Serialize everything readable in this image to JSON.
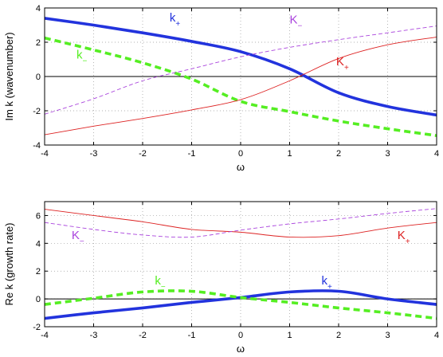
{
  "chart_data": [
    {
      "type": "line",
      "xlabel": "ω",
      "ylabel": "Im k (wavenumber)",
      "xlim": [
        -4,
        4
      ],
      "ylim": [
        -4,
        4
      ],
      "xticks": [
        -4,
        -3,
        -2,
        -1,
        0,
        1,
        2,
        3,
        4
      ],
      "yticks": [
        -4,
        -2,
        0,
        2,
        4
      ],
      "grid": true,
      "x": [
        -4,
        -3,
        -2,
        -1,
        0,
        1,
        2,
        3,
        4
      ],
      "series": [
        {
          "name": "k+",
          "color": "#2233dd",
          "style": "solid-thick",
          "values": [
            3.4,
            3.0,
            2.55,
            2.05,
            1.45,
            0.45,
            -0.95,
            -1.75,
            -2.25
          ]
        },
        {
          "name": "k−",
          "color": "#55ee22",
          "style": "dashed-thick",
          "values": [
            2.25,
            1.55,
            0.8,
            -0.15,
            -1.45,
            -2.05,
            -2.6,
            -3.05,
            -3.45
          ]
        },
        {
          "name": "K−",
          "color": "#aa44dd",
          "style": "dashed-thin",
          "values": [
            -2.2,
            -1.3,
            -0.25,
            0.45,
            1.15,
            1.7,
            2.15,
            2.55,
            2.95
          ]
        },
        {
          "name": "K+",
          "color": "#dd2222",
          "style": "solid-thin",
          "values": [
            -3.4,
            -2.9,
            -2.45,
            -1.95,
            -1.35,
            -0.25,
            1.05,
            1.85,
            2.3
          ]
        }
      ],
      "annotations": [
        {
          "text": "k",
          "sub": "+",
          "x": -1.45,
          "y": 3.2,
          "color": "#2233dd"
        },
        {
          "text": "K",
          "sub": "−",
          "x": 1.0,
          "y": 3.1,
          "color": "#aa44dd"
        },
        {
          "text": "k",
          "sub": "−",
          "x": -3.35,
          "y": 1.05,
          "color": "#55ee22"
        },
        {
          "text": "K",
          "sub": "+",
          "x": 1.95,
          "y": 0.65,
          "color": "#dd2222"
        }
      ]
    },
    {
      "type": "line",
      "xlabel": "ω",
      "ylabel": "Re k (growth rate)",
      "xlim": [
        -4,
        4
      ],
      "ylim": [
        -2,
        7
      ],
      "xticks": [
        -4,
        -3,
        -2,
        -1,
        0,
        1,
        2,
        3,
        4
      ],
      "yticks": [
        -2,
        0,
        2,
        4,
        6
      ],
      "grid": true,
      "x": [
        -4,
        -3,
        -2,
        -1,
        0,
        1,
        2,
        3,
        4
      ],
      "series": [
        {
          "name": "K+",
          "color": "#dd2222",
          "style": "solid-thin",
          "values": [
            6.45,
            6.0,
            5.55,
            5.0,
            4.8,
            4.45,
            4.55,
            5.1,
            5.5
          ]
        },
        {
          "name": "K−",
          "color": "#aa44dd",
          "style": "dashed-thin",
          "values": [
            5.5,
            5.0,
            4.6,
            4.45,
            4.95,
            5.4,
            5.75,
            6.15,
            6.5
          ]
        },
        {
          "name": "k+",
          "color": "#2233dd",
          "style": "solid-thick",
          "values": [
            -1.4,
            -1.0,
            -0.65,
            -0.25,
            0.1,
            0.5,
            0.55,
            0.0,
            -0.4
          ]
        },
        {
          "name": "k−",
          "color": "#55ee22",
          "style": "dashed-thick",
          "values": [
            -0.4,
            0.05,
            0.5,
            0.55,
            0.1,
            -0.25,
            -0.65,
            -1.0,
            -1.4
          ]
        }
      ],
      "annotations": [
        {
          "text": "K",
          "sub": "−",
          "x": -3.45,
          "y": 4.3,
          "color": "#aa44dd"
        },
        {
          "text": "K",
          "sub": "+",
          "x": 3.2,
          "y": 4.3,
          "color": "#dd2222"
        },
        {
          "text": "k",
          "sub": "−",
          "x": -1.75,
          "y": 1.05,
          "color": "#55ee22"
        },
        {
          "text": "k",
          "sub": "+",
          "x": 1.65,
          "y": 1.05,
          "color": "#2233dd"
        }
      ]
    }
  ]
}
